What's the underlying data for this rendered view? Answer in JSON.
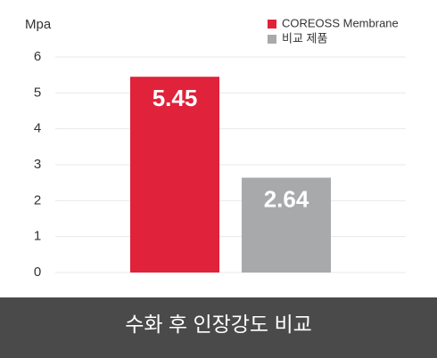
{
  "chart_data": {
    "type": "bar",
    "title": "수화 후 인장강도 비교",
    "y_label": "Mpa",
    "categories": [
      null
    ],
    "series": [
      {
        "name": "COREOSS Membrane",
        "color": "#e0223a",
        "values": [
          5.45
        ]
      },
      {
        "name": "비교 제품",
        "color": "#a8a9ab",
        "values": [
          2.64
        ]
      }
    ],
    "ylim": [
      0,
      6
    ],
    "yticks": [
      0,
      1,
      2,
      3,
      4,
      5,
      6
    ],
    "grid": true,
    "legend": "upper right"
  }
}
